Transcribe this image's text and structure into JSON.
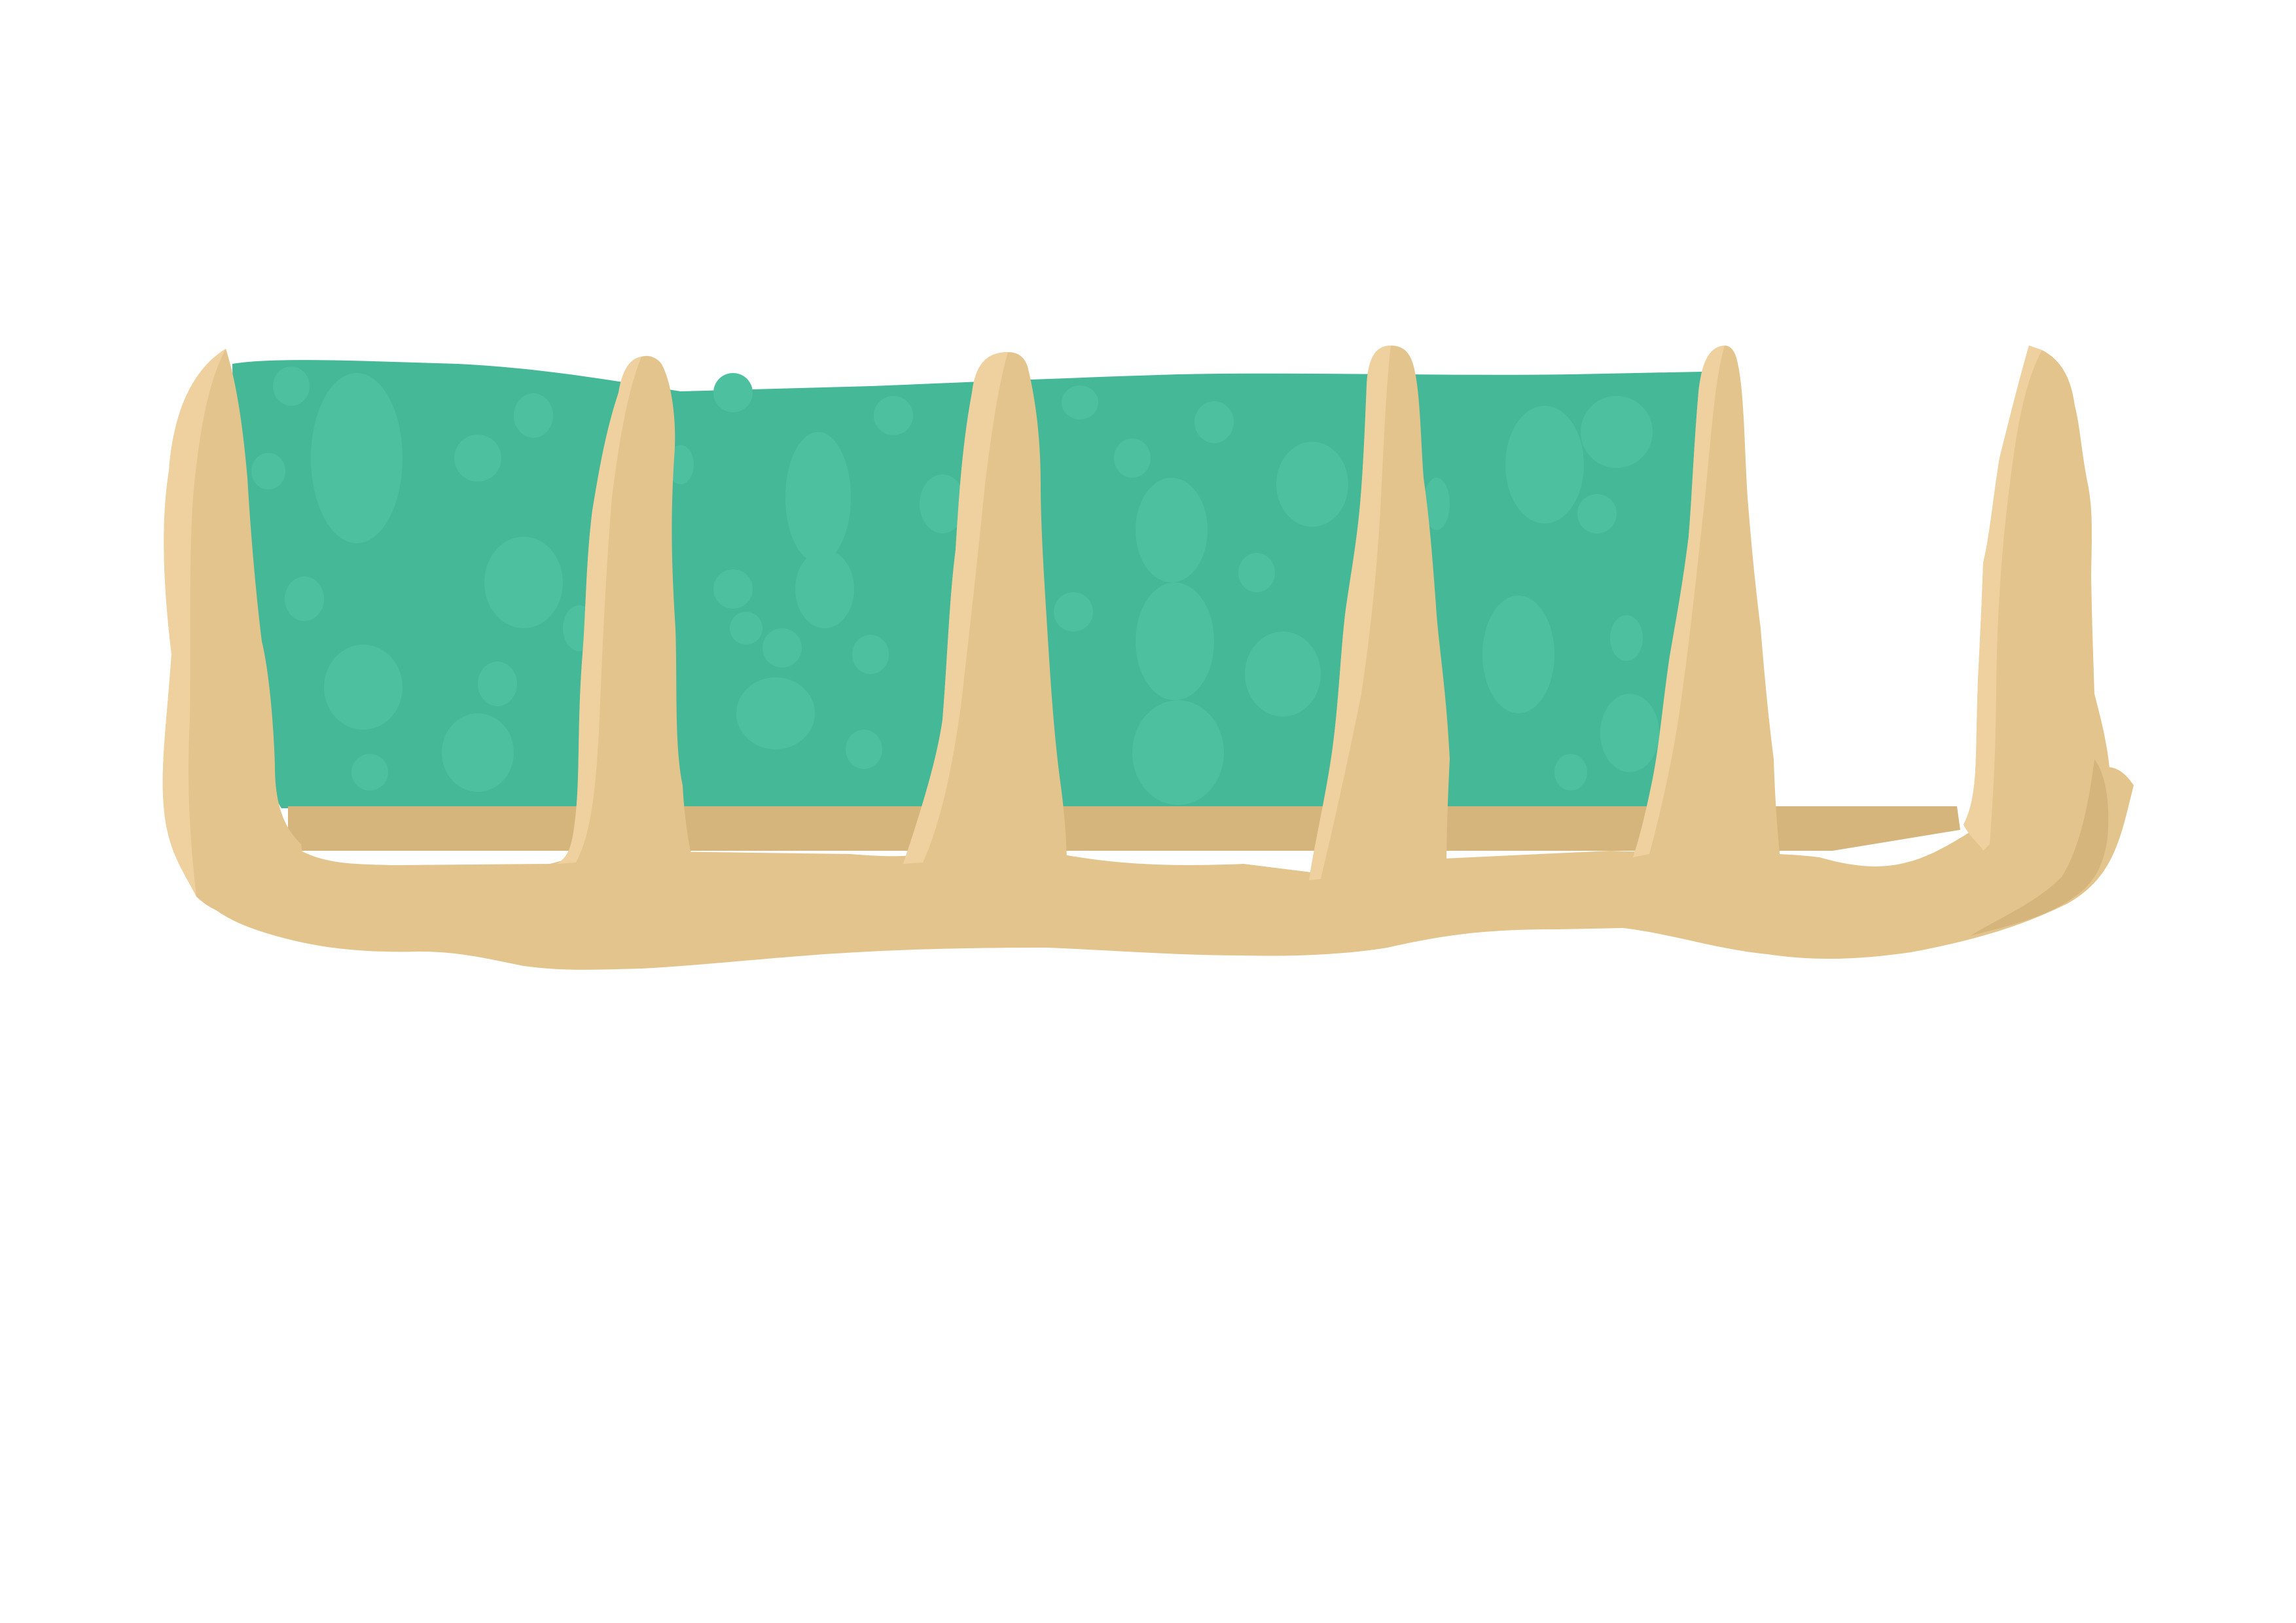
{
  "illustration": {
    "subject": "",
    "colors": {
      "background": "#ffffff",
      "water": "#45b897",
      "water_spot": "#4dc19f",
      "sand": "#e3c48c",
      "sand_highlight": "#efd19f",
      "sand_shadow": "#d5b57b"
    }
  }
}
